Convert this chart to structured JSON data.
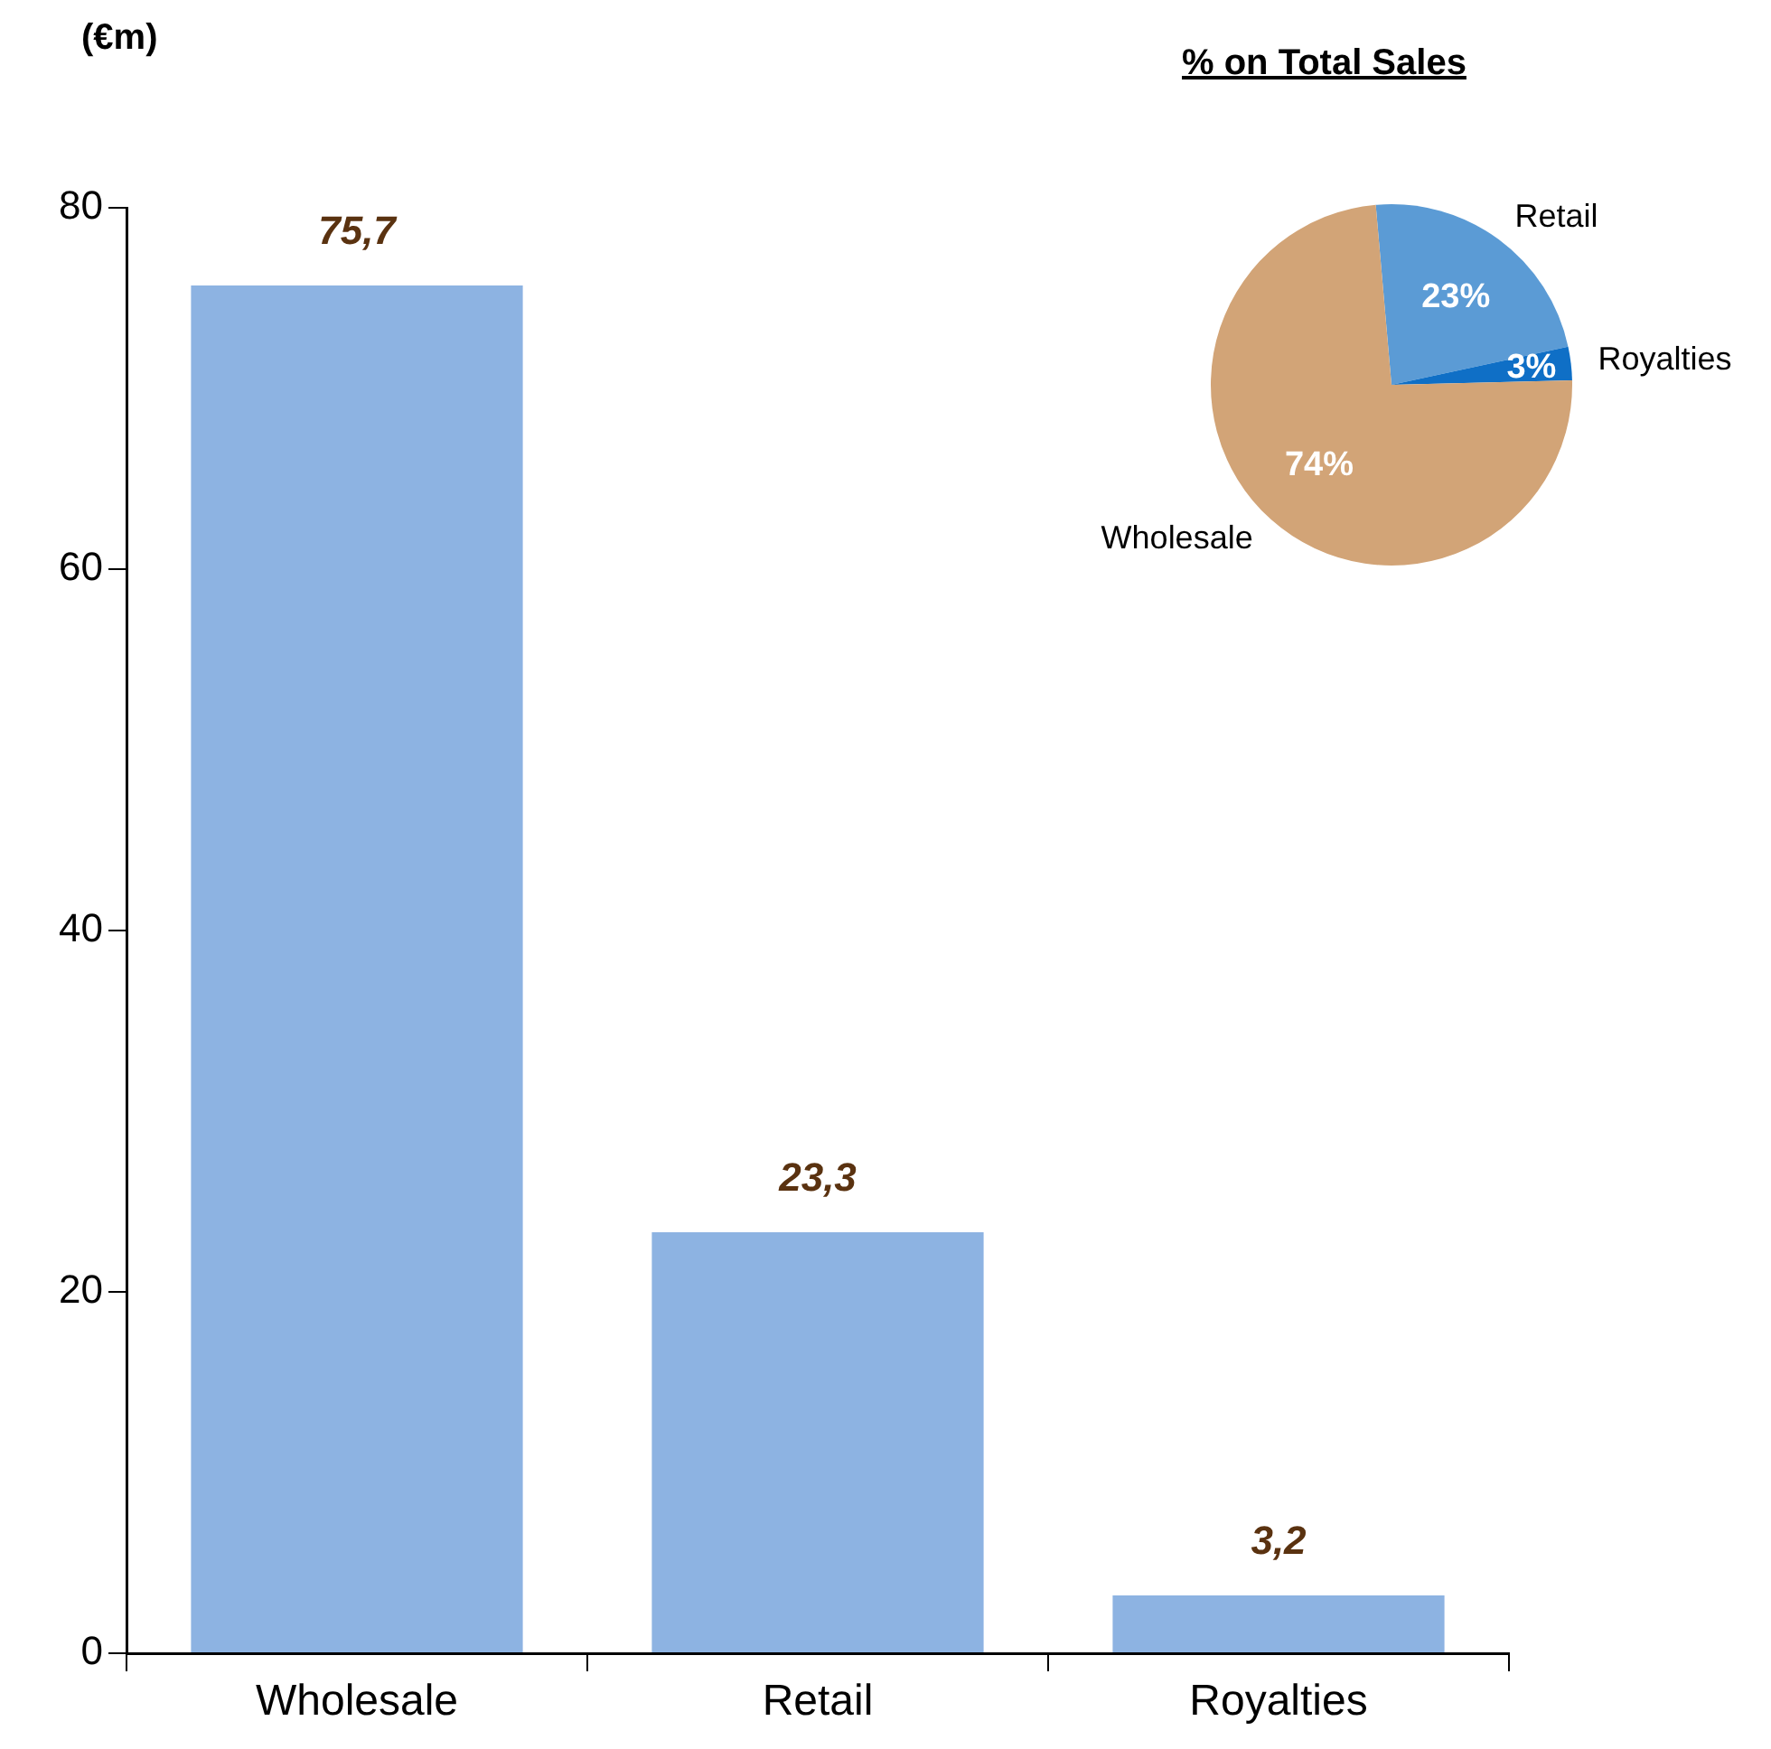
{
  "chart_data": [
    {
      "type": "bar",
      "ylabel": "(€m)",
      "categories": [
        "Wholesale",
        "Retail",
        "Royalties"
      ],
      "values": [
        75.7,
        23.3,
        3.2
      ],
      "color": "#8db3e2",
      "value_labels": [
        "75,7",
        "23,3",
        "3,2"
      ],
      "ylim": [
        0,
        80
      ],
      "yticks": [
        0,
        20,
        40,
        60,
        80
      ],
      "grid": false,
      "legend": false
    },
    {
      "type": "pie",
      "title": "% on Total Sales",
      "categories": [
        "Retail",
        "Royalties",
        "Wholesale"
      ],
      "values": [
        23,
        3,
        74
      ],
      "colors": [
        "#5b9bd5",
        "#0f6fc6",
        "#d2a477"
      ],
      "value_labels": [
        "23%",
        "3%",
        "74%"
      ],
      "legend": false
    }
  ]
}
